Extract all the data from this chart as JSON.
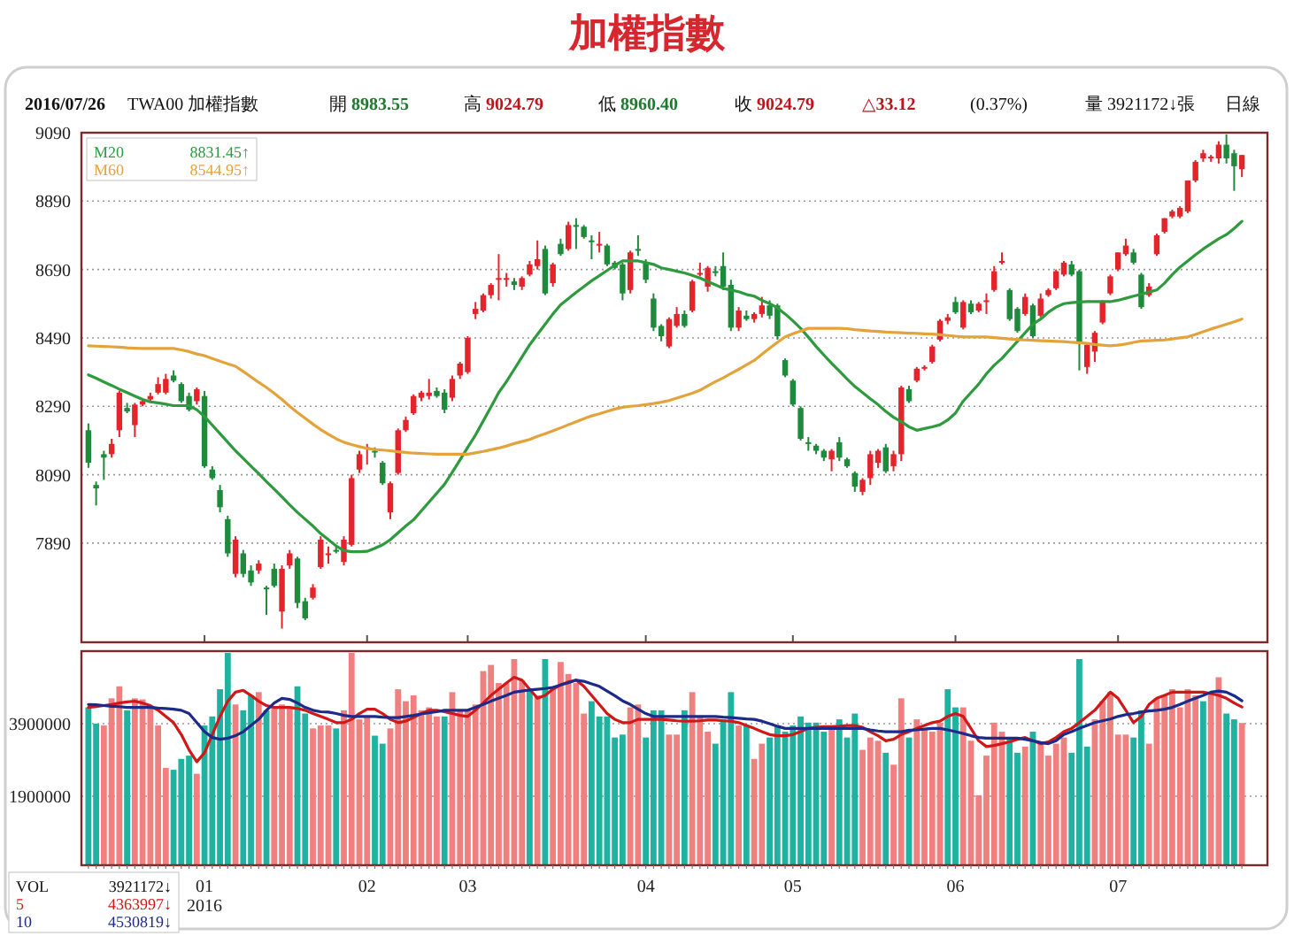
{
  "chart_data": [
    {
      "type": "candlestick",
      "title": "加權指數",
      "annotations": [
        "2016/07/26",
        "TWA00 加權指數",
        "開 8983.55",
        "高 9024.79",
        "低 8960.40",
        "收 9024.79",
        "△33.12",
        "(0.37%)",
        "量 3921172↓張",
        "日線",
        "8831.45↑",
        "8544.95↑"
      ],
      "categories": [
        null,
        null,
        null,
        null,
        null,
        null,
        null,
        null,
        null,
        null,
        null,
        null,
        null,
        null,
        null,
        null,
        null,
        null,
        null,
        null,
        null,
        null,
        null,
        null,
        null,
        null,
        null,
        null,
        null,
        null,
        null,
        null,
        null,
        null,
        null,
        null,
        null,
        null,
        null,
        null,
        null,
        null,
        null,
        null,
        null,
        null,
        null,
        null,
        null,
        null,
        null,
        null,
        null,
        null,
        null,
        null,
        null,
        null,
        null,
        null,
        null,
        null,
        null,
        null,
        null,
        null,
        null,
        null,
        null,
        null,
        null,
        null,
        null,
        null,
        null,
        null,
        null,
        null,
        null,
        null,
        null,
        null,
        null,
        null,
        null,
        null,
        null,
        null,
        null,
        null,
        null,
        null,
        null,
        null,
        null,
        null,
        null,
        null,
        null,
        null,
        null,
        null,
        null,
        null,
        null,
        null,
        null,
        null,
        null,
        null,
        null,
        null,
        null,
        null,
        null,
        null,
        null,
        null,
        null,
        null,
        null,
        null,
        null,
        null,
        null,
        null,
        null,
        null,
        null,
        null,
        null,
        null,
        null,
        null,
        null,
        null,
        null,
        null,
        null,
        null,
        null,
        null,
        null,
        null,
        null,
        null,
        null,
        null,
        null,
        null
      ],
      "ohlc": [
        [
          8220,
          8240,
          8110,
          8125
        ],
        [
          8060,
          8070,
          8000,
          8050
        ],
        [
          8150,
          8160,
          8075,
          8140
        ],
        [
          8150,
          8195,
          8140,
          8180
        ],
        [
          8220,
          8335,
          8200,
          8330
        ],
        [
          8285,
          8300,
          8270,
          8275
        ],
        [
          8235,
          8300,
          8200,
          8295
        ],
        [
          8295,
          8310,
          8290,
          8305
        ],
        [
          8310,
          8330,
          8300,
          8320
        ],
        [
          8330,
          8375,
          8325,
          8355
        ],
        [
          8330,
          8385,
          8325,
          8370
        ],
        [
          8380,
          8395,
          8360,
          8365
        ],
        [
          8355,
          8360,
          8300,
          8305
        ],
        [
          8320,
          8330,
          8275,
          8280
        ],
        [
          8305,
          8345,
          8295,
          8340
        ],
        [
          8320,
          8335,
          8110,
          8115
        ],
        [
          8105,
          8115,
          8075,
          8080
        ],
        [
          8045,
          8060,
          7980,
          7995
        ],
        [
          7960,
          7970,
          7850,
          7860
        ],
        [
          7800,
          7910,
          7790,
          7900
        ],
        [
          7860,
          7870,
          7790,
          7800
        ],
        [
          7810,
          7825,
          7765,
          7775
        ],
        [
          7810,
          7840,
          7800,
          7830
        ],
        [
          7760,
          7765,
          7680,
          7755
        ],
        [
          7815,
          7830,
          7760,
          7765
        ],
        [
          7690,
          7825,
          7640,
          7815
        ],
        [
          7825,
          7870,
          7815,
          7860
        ],
        [
          7845,
          7850,
          7700,
          7715
        ],
        [
          7720,
          7730,
          7665,
          7670
        ],
        [
          7730,
          7770,
          7725,
          7760
        ],
        [
          7820,
          7910,
          7815,
          7900
        ],
        [
          7855,
          7880,
          7830,
          7860
        ],
        [
          7870,
          7880,
          7860,
          7865
        ],
        [
          7835,
          7910,
          7825,
          7900
        ],
        [
          7885,
          8090,
          7880,
          8080
        ],
        [
          8105,
          8160,
          8095,
          8150
        ],
        [
          8168,
          8180,
          8120,
          8170
        ],
        [
          8160,
          8170,
          8140,
          8155
        ],
        [
          8125,
          8130,
          8060,
          8065
        ],
        [
          7980,
          8070,
          7960,
          8065
        ],
        [
          8095,
          8225,
          8090,
          8220
        ],
        [
          8220,
          8260,
          8215,
          8250
        ],
        [
          8270,
          8325,
          8265,
          8320
        ],
        [
          8315,
          8335,
          8305,
          8330
        ],
        [
          8320,
          8370,
          8310,
          8330
        ],
        [
          8335,
          8345,
          8315,
          8320
        ],
        [
          8330,
          8340,
          8270,
          8280
        ],
        [
          8315,
          8380,
          8305,
          8370
        ],
        [
          8380,
          8420,
          8370,
          8415
        ],
        [
          8390,
          8495,
          8385,
          8490
        ],
        [
          8560,
          8595,
          8545,
          8575
        ],
        [
          8570,
          8620,
          8565,
          8615
        ],
        [
          8615,
          8650,
          8605,
          8645
        ],
        [
          8660,
          8735,
          8600,
          8665
        ],
        [
          8660,
          8680,
          8640,
          8665
        ],
        [
          8655,
          8665,
          8630,
          8645
        ],
        [
          8640,
          8670,
          8630,
          8665
        ],
        [
          8675,
          8715,
          8670,
          8705
        ],
        [
          8700,
          8775,
          8690,
          8720
        ],
        [
          8750,
          8760,
          8615,
          8620
        ],
        [
          8650,
          8710,
          8640,
          8705
        ],
        [
          8765,
          8780,
          8730,
          8735
        ],
        [
          8750,
          8830,
          8745,
          8820
        ],
        [
          8820,
          8840,
          8750,
          8815
        ],
        [
          8815,
          8820,
          8780,
          8785
        ],
        [
          8775,
          8790,
          8720,
          8770
        ],
        [
          8760,
          8800,
          8740,
          8765
        ],
        [
          8760,
          8765,
          8700,
          8705
        ],
        [
          8710,
          8715,
          8690,
          8695
        ],
        [
          8705,
          8710,
          8600,
          8620
        ],
        [
          8630,
          8745,
          8620,
          8740
        ],
        [
          8750,
          8790,
          8730,
          8745
        ],
        [
          8710,
          8720,
          8650,
          8660
        ],
        [
          8605,
          8620,
          8510,
          8520
        ],
        [
          8525,
          8530,
          8480,
          8495
        ],
        [
          8465,
          8550,
          8460,
          8545
        ],
        [
          8525,
          8580,
          8520,
          8560
        ],
        [
          8560,
          8570,
          8520,
          8525
        ],
        [
          8570,
          8660,
          8565,
          8655
        ],
        [
          8680,
          8710,
          8670,
          8680
        ],
        [
          8640,
          8700,
          8625,
          8695
        ],
        [
          8685,
          8700,
          8670,
          8680
        ],
        [
          8700,
          8740,
          8630,
          8640
        ],
        [
          8645,
          8660,
          8510,
          8520
        ],
        [
          8520,
          8580,
          8510,
          8570
        ],
        [
          8555,
          8570,
          8540,
          8545
        ],
        [
          8545,
          8565,
          8535,
          8560
        ],
        [
          8560,
          8610,
          8550,
          8585
        ],
        [
          8585,
          8600,
          8545,
          8555
        ],
        [
          8585,
          8590,
          8485,
          8495
        ],
        [
          8425,
          8430,
          8375,
          8380
        ],
        [
          8365,
          8370,
          8290,
          8295
        ],
        [
          8285,
          8290,
          8190,
          8195
        ],
        [
          8185,
          8200,
          8160,
          8180
        ],
        [
          8175,
          8180,
          8150,
          8160
        ],
        [
          8160,
          8165,
          8130,
          8140
        ],
        [
          8135,
          8165,
          8100,
          8160
        ],
        [
          8185,
          8200,
          8130,
          8140
        ],
        [
          8135,
          8140,
          8110,
          8115
        ],
        [
          8095,
          8100,
          8040,
          8055
        ],
        [
          8040,
          8080,
          8030,
          8075
        ],
        [
          8080,
          8160,
          8060,
          8150
        ],
        [
          8125,
          8165,
          8110,
          8160
        ],
        [
          8170,
          8180,
          8095,
          8100
        ],
        [
          8115,
          8160,
          8100,
          8150
        ],
        [
          8150,
          8350,
          8130,
          8345
        ],
        [
          8340,
          8350,
          8300,
          8305
        ],
        [
          8365,
          8405,
          8360,
          8400
        ],
        [
          8400,
          8410,
          8395,
          8405
        ],
        [
          8420,
          8470,
          8415,
          8465
        ],
        [
          8485,
          8545,
          8480,
          8540
        ],
        [
          8540,
          8560,
          8530,
          8550
        ],
        [
          8595,
          8610,
          8560,
          8565
        ],
        [
          8520,
          8600,
          8515,
          8595
        ],
        [
          8590,
          8600,
          8560,
          8565
        ],
        [
          8570,
          8595,
          8565,
          8590
        ],
        [
          8595,
          8620,
          8560,
          8600
        ],
        [
          8630,
          8700,
          8625,
          8685
        ],
        [
          8715,
          8740,
          8705,
          8715
        ],
        [
          8630,
          8635,
          8540,
          8545
        ],
        [
          8575,
          8580,
          8505,
          8510
        ],
        [
          8560,
          8620,
          8555,
          8610
        ],
        [
          8585,
          8590,
          8490,
          8495
        ],
        [
          8555,
          8620,
          8550,
          8605
        ],
        [
          8615,
          8635,
          8610,
          8630
        ],
        [
          8635,
          8690,
          8630,
          8685
        ],
        [
          8675,
          8715,
          8670,
          8710
        ],
        [
          8705,
          8715,
          8670,
          8675
        ],
        [
          8685,
          8690,
          8395,
          8475
        ],
        [
          8405,
          8475,
          8385,
          8470
        ],
        [
          8450,
          8510,
          8420,
          8505
        ],
        [
          8535,
          8600,
          8530,
          8595
        ],
        [
          8620,
          8675,
          8615,
          8670
        ],
        [
          8690,
          8740,
          8685,
          8740
        ],
        [
          8735,
          8780,
          8730,
          8760
        ],
        [
          8740,
          8750,
          8705,
          8710
        ],
        [
          8675,
          8680,
          8575,
          8580
        ],
        [
          8615,
          8650,
          8610,
          8640
        ],
        [
          8735,
          8795,
          8730,
          8790
        ],
        [
          8800,
          8840,
          8795,
          8840
        ],
        [
          8845,
          8865,
          8840,
          8860
        ],
        [
          8845,
          8875,
          8840,
          8870
        ],
        [
          8860,
          8950,
          8855,
          8950
        ],
        [
          8950,
          9010,
          8945,
          9005
        ],
        [
          9015,
          9040,
          9005,
          9030
        ],
        [
          9015,
          9025,
          9005,
          9020
        ],
        [
          9015,
          9065,
          9000,
          9055
        ],
        [
          9055,
          9085,
          9000,
          9015
        ],
        [
          9030,
          9040,
          8920,
          8992
        ],
        [
          8983.55,
          9024.79,
          8960.4,
          9024.79
        ]
      ],
      "series": [
        {
          "name": "M20",
          "type": "line",
          "color": "#2e9a3e",
          "values": [
            8382,
            8372,
            8361,
            8351,
            8340,
            8330,
            8320,
            8310,
            8303,
            8300,
            8296,
            8292,
            8292,
            8292,
            8280,
            8260,
            8235,
            8210,
            8185,
            8160,
            8138,
            8115,
            8093,
            8070,
            8048,
            8025,
            8002,
            7980,
            7960,
            7940,
            7918,
            7900,
            7882,
            7868,
            7865,
            7865,
            7866,
            7875,
            7885,
            7900,
            7920,
            7940,
            7958,
            7984,
            8010,
            8036,
            8062,
            8097,
            8133,
            8170,
            8206,
            8247,
            8288,
            8330,
            8362,
            8398,
            8434,
            8470,
            8500,
            8530,
            8560,
            8587,
            8605,
            8623,
            8640,
            8657,
            8672,
            8687,
            8702,
            8715,
            8715,
            8715,
            8710,
            8705,
            8695,
            8690,
            8685,
            8680,
            8673,
            8665,
            8655,
            8645,
            8635,
            8630,
            8625,
            8617,
            8612,
            8600,
            8590,
            8578,
            8560,
            8540,
            8518,
            8492,
            8465,
            8440,
            8416,
            8393,
            8370,
            8348,
            8330,
            8312,
            8295,
            8275,
            8258,
            8245,
            8230,
            8220,
            8225,
            8230,
            8236,
            8250,
            8270,
            8305,
            8330,
            8355,
            8385,
            8410,
            8430,
            8455,
            8480,
            8505,
            8530,
            8545,
            8565,
            8580,
            8590,
            8593,
            8595,
            8596,
            8596,
            8596,
            8596,
            8600,
            8606,
            8612,
            8618,
            8624,
            8630,
            8650,
            8675,
            8697,
            8715,
            8733,
            8750,
            8765,
            8780,
            8792,
            8810,
            8831
          ]
        },
        {
          "name": "M60",
          "type": "line",
          "color": "#e3a33a",
          "values": [
            8467,
            8466,
            8465,
            8464,
            8463,
            8461,
            8460,
            8459,
            8459,
            8459,
            8459,
            8459,
            8455,
            8450,
            8443,
            8438,
            8430,
            8422,
            8414,
            8407,
            8392,
            8376,
            8360,
            8345,
            8328,
            8310,
            8290,
            8272,
            8255,
            8238,
            8222,
            8208,
            8195,
            8185,
            8178,
            8172,
            8167,
            8164,
            8162,
            8160,
            8157,
            8155,
            8153,
            8152,
            8151,
            8150,
            8150,
            8150,
            8150,
            8150,
            8154,
            8158,
            8163,
            8168,
            8174,
            8181,
            8187,
            8193,
            8202,
            8210,
            8218,
            8227,
            8236,
            8245,
            8254,
            8262,
            8268,
            8275,
            8282,
            8287,
            8290,
            8292,
            8295,
            8298,
            8302,
            8307,
            8314,
            8321,
            8328,
            8337,
            8350,
            8362,
            8373,
            8386,
            8398,
            8411,
            8424,
            8442,
            8460,
            8477,
            8493,
            8502,
            8510,
            8518,
            8518,
            8518,
            8518,
            8518,
            8517,
            8514,
            8512,
            8510,
            8509,
            8507,
            8506,
            8505,
            8504,
            8503,
            8502,
            8501,
            8499,
            8497,
            8495,
            8493,
            8493,
            8493,
            8493,
            8491,
            8489,
            8487,
            8485,
            8484,
            8483,
            8482,
            8481,
            8480,
            8479,
            8477,
            8476,
            8474,
            8471,
            8469,
            8467,
            8469,
            8472,
            8477,
            8481,
            8482,
            8483,
            8484,
            8487,
            8490,
            8493,
            8500,
            8508,
            8516,
            8523,
            8530,
            8537,
            8545
          ]
        }
      ],
      "ylim": [
        7600,
        9090
      ],
      "yticks": [
        7890,
        8090,
        8290,
        8490,
        8690,
        8890,
        9090
      ],
      "grid": "y",
      "legend": "top left",
      "tick_labels": "y"
    },
    {
      "type": "bar",
      "annotations": [
        "3921172↓",
        "4363997↓",
        "4530819↓"
      ],
      "categories": [
        null,
        null,
        null,
        null,
        null,
        null,
        null,
        null,
        null,
        null,
        null,
        null,
        null,
        null,
        null,
        "01\n2016",
        null,
        null,
        null,
        null,
        null,
        null,
        null,
        null,
        null,
        null,
        null,
        null,
        null,
        null,
        null,
        null,
        null,
        null,
        null,
        null,
        "02",
        null,
        null,
        null,
        null,
        null,
        null,
        null,
        null,
        null,
        null,
        null,
        null,
        "03",
        null,
        null,
        null,
        null,
        null,
        null,
        null,
        null,
        null,
        null,
        null,
        null,
        null,
        null,
        null,
        null,
        null,
        null,
        null,
        null,
        null,
        null,
        "04",
        null,
        null,
        null,
        null,
        null,
        null,
        null,
        null,
        null,
        null,
        null,
        null,
        null,
        null,
        null,
        null,
        null,
        null,
        "05",
        null,
        null,
        null,
        null,
        null,
        null,
        null,
        null,
        null,
        null,
        null,
        null,
        null,
        null,
        null,
        null,
        null,
        null,
        null,
        null,
        "06",
        null,
        null,
        null,
        null,
        null,
        null,
        null,
        null,
        null,
        null,
        null,
        null,
        null,
        null,
        null,
        null,
        null,
        null,
        null,
        null,
        "07",
        null,
        null,
        null,
        null,
        null,
        null,
        null,
        null,
        null,
        null,
        null,
        null,
        null,
        null,
        null,
        null
      ],
      "series": [
        {
          "name": "VOL",
          "type": "bar",
          "colors": [
            "#20b2a0",
            "#20b2a0",
            "#f08080",
            "#f08080",
            "#f08080",
            "#20b2a0",
            "#f08080",
            "#f08080",
            "#f08080",
            "#f08080",
            "#f08080",
            "#20b2a0",
            "#20b2a0",
            "#20b2a0",
            "#f08080",
            "#20b2a0",
            "#20b2a0",
            "#20b2a0",
            "#20b2a0",
            "#f08080",
            "#20b2a0",
            "#20b2a0",
            "#f08080",
            "#20b2a0",
            "#f08080",
            "#f08080",
            "#f08080",
            "#20b2a0",
            "#20b2a0",
            "#f08080",
            "#f08080",
            "#f08080",
            "#20b2a0",
            "#f08080",
            "#f08080",
            "#f08080",
            "#f08080",
            "#20b2a0",
            "#20b2a0",
            "#f08080",
            "#f08080",
            "#f08080",
            "#f08080",
            "#f08080",
            "#f08080",
            "#f08080",
            "#20b2a0",
            "#f08080",
            "#f08080",
            "#f08080",
            "#f08080",
            "#f08080",
            "#f08080",
            "#f08080",
            "#f08080",
            "#f08080",
            "#f08080",
            "#20b2a0",
            "#f08080",
            "#20b2a0",
            "#f08080",
            "#f08080",
            "#f08080",
            "#f08080",
            "#f08080",
            "#20b2a0",
            "#20b2a0",
            "#20b2a0",
            "#20b2a0",
            "#20b2a0",
            "#f08080",
            "#f08080",
            "#20b2a0",
            "#20b2a0",
            "#20b2a0",
            "#f08080",
            "#f08080",
            "#20b2a0",
            "#f08080",
            "#f08080",
            "#f08080",
            "#20b2a0",
            "#20b2a0",
            "#20b2a0",
            "#f08080",
            "#20b2a0",
            "#f08080",
            "#f08080",
            "#20b2a0",
            "#20b2a0",
            "#20b2a0",
            "#20b2a0",
            "#20b2a0",
            "#20b2a0",
            "#20b2a0",
            "#20b2a0",
            "#f08080",
            "#20b2a0",
            "#20b2a0",
            "#20b2a0",
            "#f08080",
            "#f08080",
            "#f08080",
            "#20b2a0",
            "#f08080",
            "#f08080",
            "#20b2a0",
            "#f08080",
            "#f08080",
            "#f08080",
            "#f08080",
            "#20b2a0",
            "#20b2a0",
            "#f08080",
            "#f08080",
            "#f08080",
            "#f08080",
            "#f08080",
            "#f08080",
            "#20b2a0",
            "#20b2a0",
            "#f08080",
            "#20b2a0",
            "#f08080",
            "#f08080",
            "#f08080",
            "#f08080",
            "#20b2a0",
            "#20b2a0",
            "#20b2a0",
            "#f08080",
            "#f08080",
            "#f08080",
            "#f08080",
            "#f08080",
            "#20b2a0",
            "#20b2a0",
            "#f08080",
            "#f08080",
            "#f08080",
            "#f08080",
            "#f08080",
            "#f08080",
            "#f08080",
            "#20b2a0",
            "#f08080",
            "#f08080",
            "#20b2a0",
            "#20b2a0",
            "#f08080"
          ],
          "values": [
            4350000,
            3900000,
            3850000,
            4600000,
            4930000,
            4270000,
            4600000,
            4570000,
            4350000,
            3850000,
            2680000,
            2630000,
            2930000,
            3020000,
            2520000,
            3850000,
            4100000,
            4850000,
            5850000,
            4430000,
            4270000,
            4680000,
            4770000,
            4270000,
            4350000,
            4430000,
            4350000,
            4930000,
            4180000,
            3770000,
            3850000,
            3850000,
            3770000,
            4270000,
            5850000,
            4020000,
            4100000,
            3570000,
            3350000,
            3770000,
            4850000,
            4520000,
            4680000,
            4270000,
            4350000,
            4100000,
            4100000,
            4770000,
            4270000,
            4270000,
            4430000,
            5350000,
            5520000,
            5020000,
            5020000,
            5680000,
            5100000,
            4850000,
            4680000,
            5680000,
            4930000,
            5600000,
            5270000,
            5020000,
            4180000,
            4520000,
            4100000,
            4100000,
            3520000,
            3600000,
            4350000,
            4430000,
            3520000,
            4270000,
            4270000,
            3600000,
            3600000,
            4270000,
            4770000,
            4100000,
            3680000,
            3350000,
            4020000,
            4770000,
            3850000,
            3850000,
            2930000,
            3350000,
            3520000,
            3850000,
            3680000,
            3850000,
            4100000,
            3930000,
            3930000,
            3680000,
            3850000,
            4020000,
            3520000,
            4180000,
            3180000,
            3520000,
            3430000,
            3100000,
            2770000,
            4600000,
            3520000,
            4020000,
            3770000,
            3680000,
            3930000,
            4850000,
            4350000,
            4350000,
            3430000,
            1930000,
            3020000,
            3930000,
            3680000,
            3520000,
            3100000,
            3270000,
            3680000,
            3350000,
            3020000,
            3350000,
            3520000,
            3100000,
            5680000,
            3270000,
            4020000,
            4520000,
            4770000,
            3600000,
            3600000,
            3520000,
            4270000,
            3350000,
            4600000,
            4680000,
            4850000,
            4350000,
            4850000,
            4680000,
            4520000,
            4770000,
            5180000,
            4180000,
            4020000,
            3920000
          ]
        },
        {
          "name": "5",
          "type": "line",
          "color": "#d01818",
          "values": [
            4350000,
            4370000,
            4400000,
            4430000,
            4470000,
            4500000,
            4520000,
            4470000,
            4400000,
            4270000,
            4100000,
            3930000,
            3600000,
            3180000,
            2850000,
            3100000,
            3600000,
            4100000,
            4520000,
            4770000,
            4820000,
            4680000,
            4520000,
            4400000,
            4350000,
            4350000,
            4350000,
            4320000,
            4270000,
            4180000,
            4100000,
            4020000,
            3930000,
            3930000,
            4020000,
            4180000,
            4300000,
            4300000,
            4180000,
            4020000,
            3930000,
            3970000,
            4070000,
            4180000,
            4270000,
            4270000,
            4230000,
            4180000,
            4130000,
            4100000,
            4270000,
            4470000,
            4680000,
            4850000,
            5020000,
            5180000,
            5100000,
            4850000,
            4600000,
            4680000,
            4850000,
            4970000,
            5050000,
            5100000,
            4930000,
            4680000,
            4430000,
            4180000,
            4020000,
            3930000,
            3930000,
            4020000,
            4020000,
            4020000,
            4020000,
            4000000,
            3980000,
            3970000,
            3970000,
            3980000,
            4000000,
            4000000,
            3980000,
            3970000,
            3930000,
            3850000,
            3770000,
            3680000,
            3600000,
            3570000,
            3570000,
            3600000,
            3680000,
            3770000,
            3800000,
            3820000,
            3820000,
            3830000,
            3850000,
            3850000,
            3800000,
            3680000,
            3570000,
            3430000,
            3470000,
            3600000,
            3680000,
            3770000,
            3850000,
            3930000,
            3970000,
            4100000,
            4180000,
            4100000,
            3770000,
            3430000,
            3270000,
            3300000,
            3350000,
            3400000,
            3470000,
            3520000,
            3430000,
            3350000,
            3400000,
            3520000,
            3680000,
            3770000,
            3930000,
            4100000,
            4270000,
            4520000,
            4770000,
            4600000,
            4270000,
            3930000,
            4100000,
            4430000,
            4600000,
            4680000,
            4770000,
            4770000,
            4770000,
            4770000,
            4770000,
            4730000,
            4680000,
            4600000,
            4470000,
            4360000
          ]
        },
        {
          "name": "10",
          "type": "line",
          "color": "#1c2a8a",
          "values": [
            4430000,
            4420000,
            4400000,
            4380000,
            4370000,
            4350000,
            4350000,
            4350000,
            4350000,
            4330000,
            4320000,
            4300000,
            4270000,
            4180000,
            3930000,
            3680000,
            3520000,
            3470000,
            3500000,
            3570000,
            3680000,
            3850000,
            4020000,
            4270000,
            4470000,
            4600000,
            4570000,
            4470000,
            4350000,
            4270000,
            4230000,
            4220000,
            4180000,
            4130000,
            4100000,
            4100000,
            4100000,
            4100000,
            4080000,
            4070000,
            4070000,
            4100000,
            4130000,
            4170000,
            4200000,
            4230000,
            4270000,
            4270000,
            4270000,
            4270000,
            4350000,
            4430000,
            4520000,
            4600000,
            4680000,
            4770000,
            4800000,
            4830000,
            4850000,
            4870000,
            4900000,
            4970000,
            5030000,
            5100000,
            5070000,
            5000000,
            4930000,
            4800000,
            4670000,
            4530000,
            4430000,
            4300000,
            4180000,
            4100000,
            4100000,
            4100000,
            4100000,
            4100000,
            4100000,
            4100000,
            4100000,
            4100000,
            4080000,
            4070000,
            4050000,
            4030000,
            4020000,
            3970000,
            3900000,
            3830000,
            3770000,
            3770000,
            3770000,
            3770000,
            3770000,
            3770000,
            3770000,
            3770000,
            3770000,
            3770000,
            3770000,
            3730000,
            3700000,
            3680000,
            3680000,
            3680000,
            3720000,
            3730000,
            3750000,
            3770000,
            3770000,
            3730000,
            3680000,
            3630000,
            3570000,
            3520000,
            3500000,
            3500000,
            3500000,
            3500000,
            3500000,
            3470000,
            3430000,
            3380000,
            3350000,
            3430000,
            3600000,
            3680000,
            3770000,
            3850000,
            3930000,
            3980000,
            4030000,
            4100000,
            4150000,
            4180000,
            4220000,
            4250000,
            4270000,
            4300000,
            4350000,
            4430000,
            4520000,
            4600000,
            4680000,
            4770000,
            4800000,
            4770000,
            4670000,
            4530000
          ]
        }
      ],
      "ylim": [
        0,
        5900000
      ],
      "yticks": [
        1900000,
        3900000
      ],
      "grid": "y",
      "legend": "bottom left"
    }
  ]
}
